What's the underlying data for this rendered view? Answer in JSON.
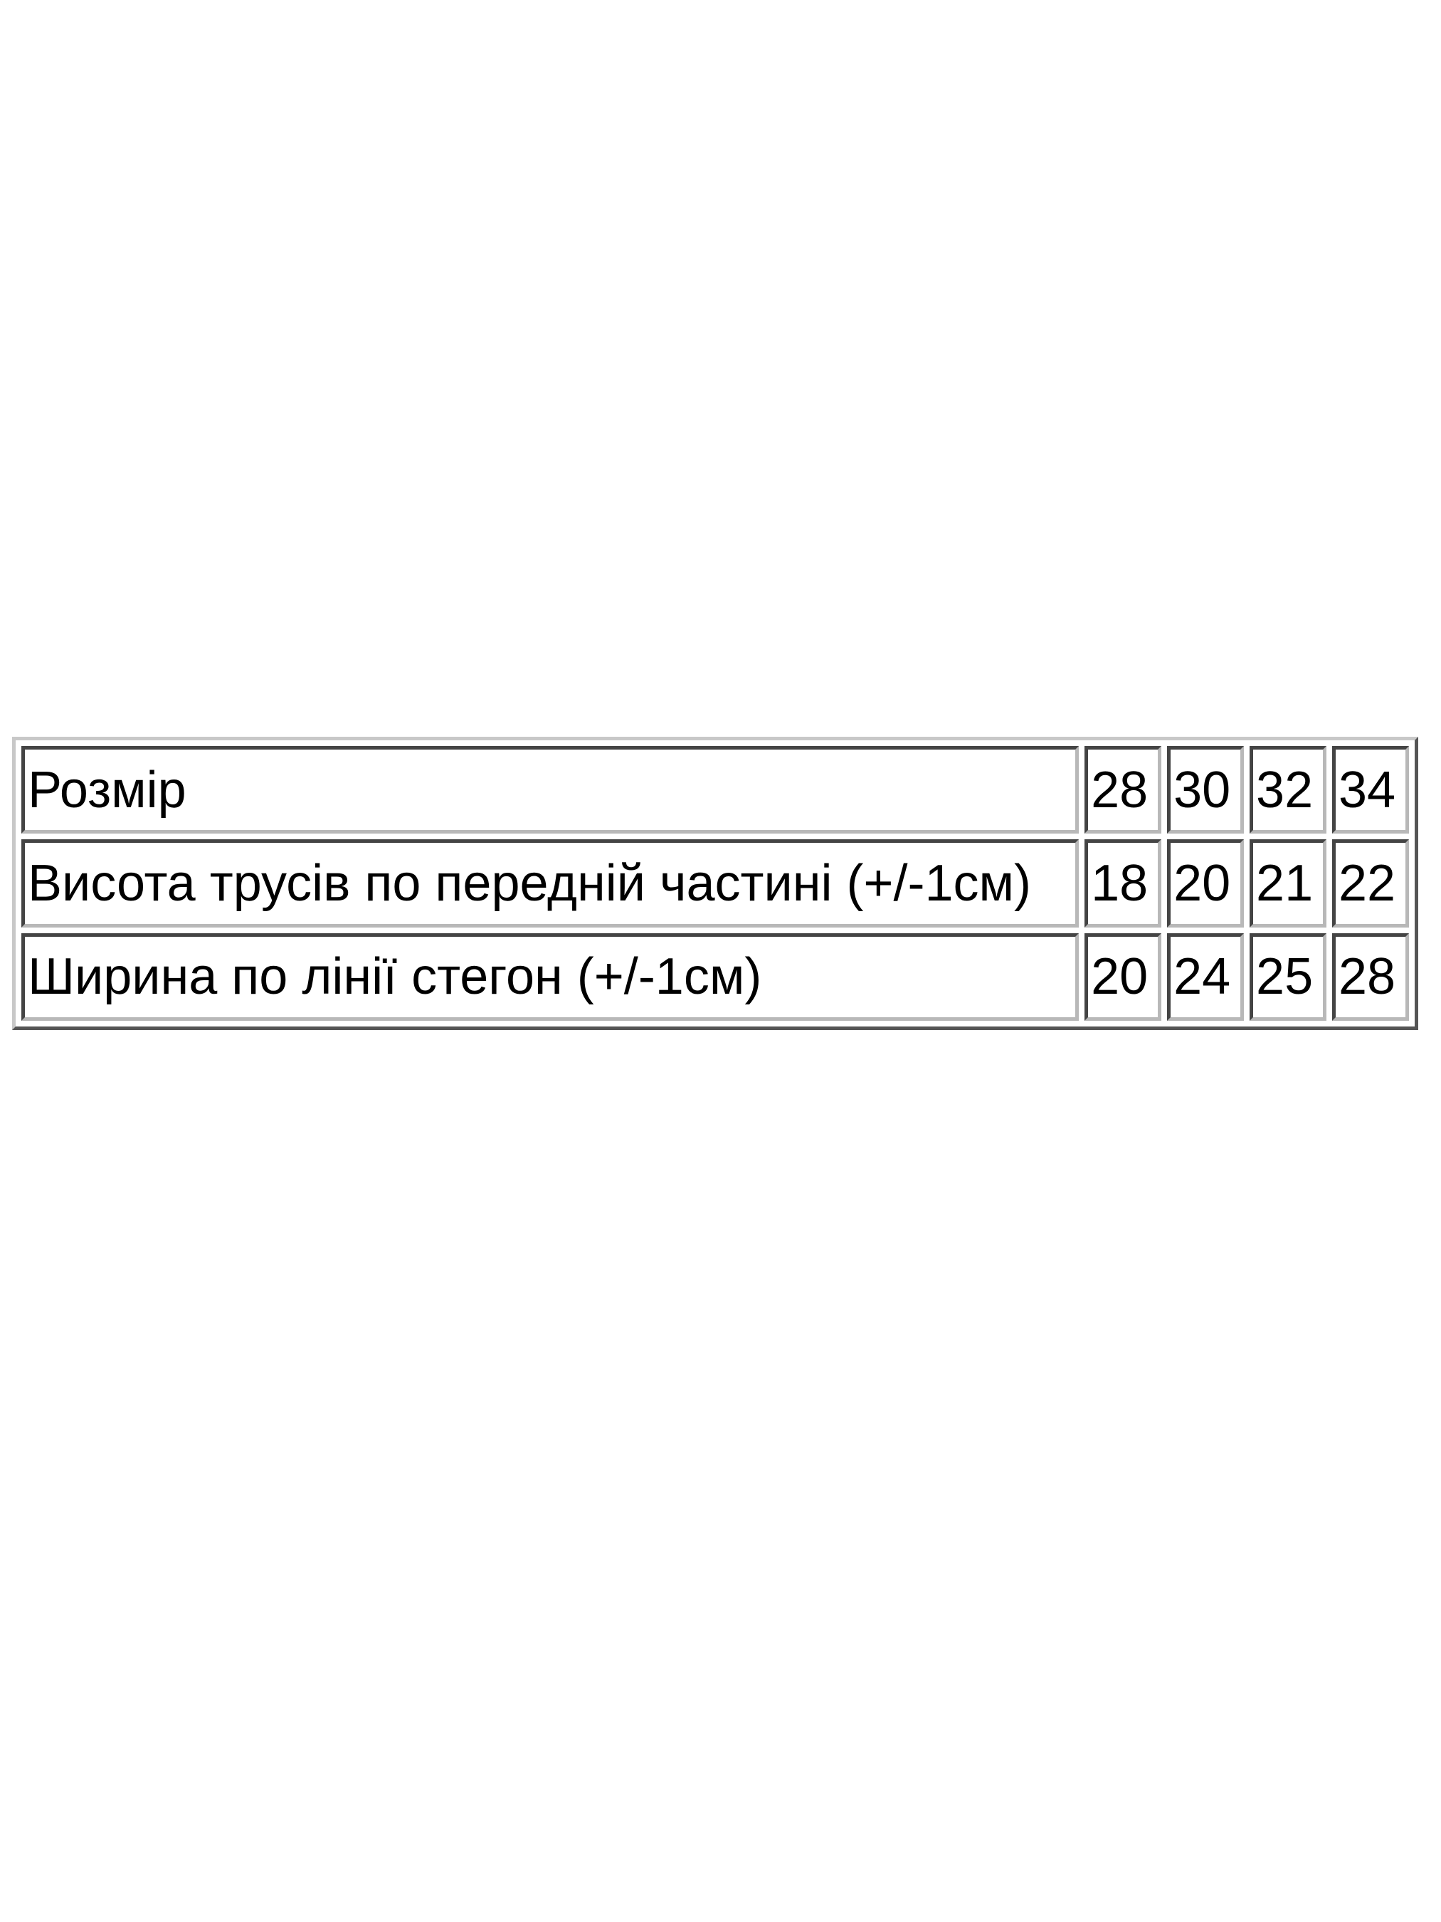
{
  "table": {
    "header": {
      "label": "Розмір",
      "values": [
        "28",
        "30",
        "32",
        "34"
      ]
    },
    "rows": [
      {
        "label": "Висота трусів по передній частині (+/-1см)",
        "values": [
          "18",
          "20",
          "21",
          "22"
        ]
      },
      {
        "label": "Ширина по лінії стегон (+/-1см)",
        "values": [
          "20",
          "24",
          "25",
          "28"
        ]
      }
    ]
  }
}
